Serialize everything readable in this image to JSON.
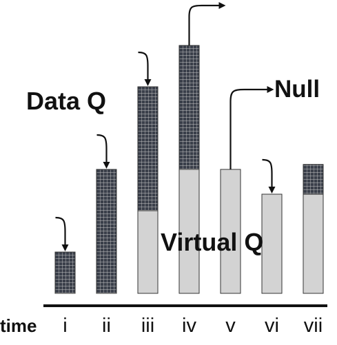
{
  "labels": {
    "data_q": "Data Q",
    "virtual_q": "Virtual Q",
    "null": "Null",
    "time": "time"
  },
  "time_steps": [
    {
      "label": "i",
      "virtual": 0.0,
      "data": 1.25,
      "arrow": "in"
    },
    {
      "label": "ii",
      "virtual": 0.0,
      "data": 3.75,
      "arrow": "in"
    },
    {
      "label": "iii",
      "virtual": 2.5,
      "data": 3.75,
      "arrow": "in"
    },
    {
      "label": "iv",
      "virtual": 3.75,
      "data": 3.75,
      "arrow": "out"
    },
    {
      "label": "v",
      "virtual": 3.75,
      "data": 0.0,
      "arrow": "null"
    },
    {
      "label": "vi",
      "virtual": 3.0,
      "data": 0.0,
      "arrow": "in"
    },
    {
      "label": "vii",
      "virtual": 3.0,
      "data": 0.9,
      "arrow": "none"
    }
  ],
  "colors": {
    "virtual_fill": "#d3d3d3",
    "data_fill": "#3a3f4a",
    "grid_line": "#c8c8c8",
    "outline": "#333333",
    "ink": "#111111"
  }
}
